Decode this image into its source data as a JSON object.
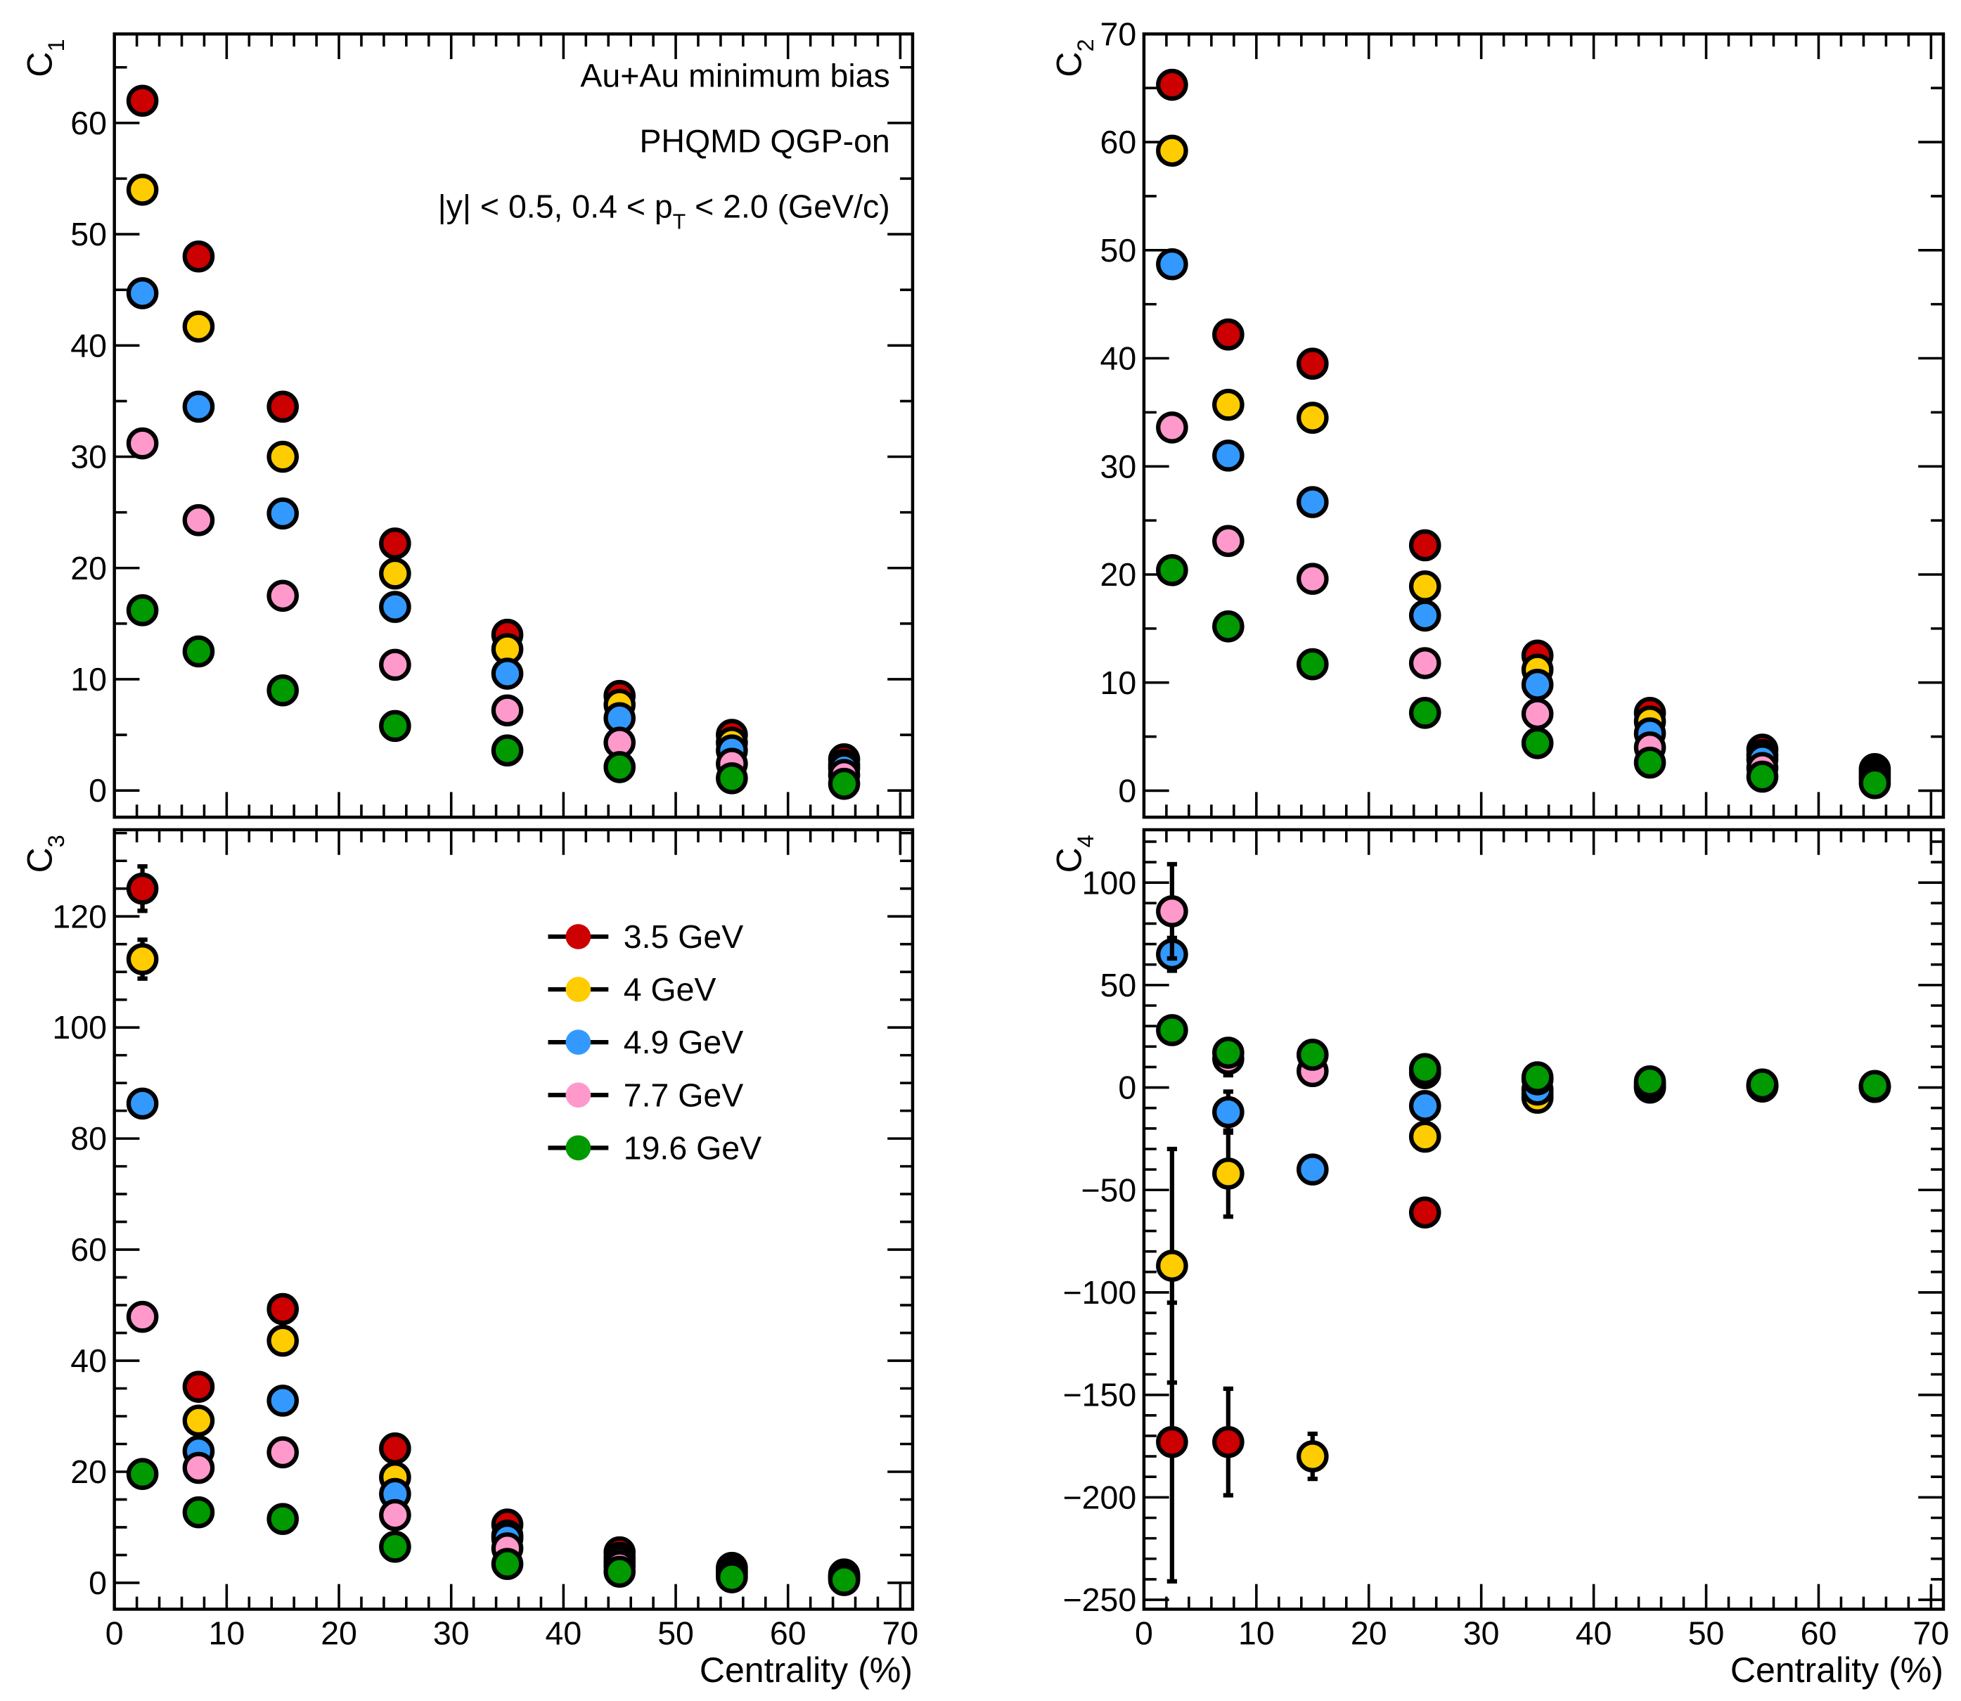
{
  "chart_data": [
    {
      "type": "scatter",
      "id": "c1",
      "ylabel": "C_1",
      "xlabel": "",
      "xlim": [
        0,
        71.1
      ],
      "ylim": [
        -2.4,
        68
      ],
      "yticks": [
        0,
        10,
        20,
        30,
        40,
        50,
        60
      ],
      "yminor": 2,
      "xtick_labels": false,
      "annotations": [
        "Au+Au minimum bias",
        "PHQMD QGP-on",
        "|y| < 0.5, 0.4 < p_T < 2.0 (GeV/c)"
      ],
      "x": [
        2.5,
        7.5,
        15,
        25,
        35,
        45,
        55,
        65
      ],
      "series": [
        {
          "name": "3.5 GeV",
          "values": [
            62,
            48,
            34.5,
            22.2,
            14,
            8.5,
            5,
            2.8
          ]
        },
        {
          "name": "4 GeV",
          "values": [
            54,
            41.7,
            30,
            19.5,
            12.7,
            7.7,
            4.3,
            2.3
          ]
        },
        {
          "name": "4.9 GeV",
          "values": [
            44.7,
            34.5,
            24.9,
            16.5,
            10.5,
            6.5,
            3.6,
            2
          ]
        },
        {
          "name": "7.7 GeV",
          "values": [
            31.2,
            24.3,
            17.5,
            11.3,
            7.2,
            4.3,
            2.4,
            1.4
          ]
        },
        {
          "name": "19.6 GeV",
          "values": [
            16.2,
            12.5,
            9,
            5.8,
            3.6,
            2.1,
            1.1,
            0.6
          ]
        }
      ]
    },
    {
      "type": "scatter",
      "id": "c2",
      "ylabel": "C_2",
      "xlabel": "",
      "xlim": [
        0,
        71.1
      ],
      "ylim": [
        -2.45,
        70
      ],
      "yticks": [
        0,
        10,
        20,
        30,
        40,
        50,
        60,
        70
      ],
      "yminor": 2,
      "xtick_labels": false,
      "x": [
        2.5,
        7.5,
        15,
        25,
        35,
        45,
        55,
        65
      ],
      "series": [
        {
          "name": "3.5 GeV",
          "values": [
            65.3,
            42.2,
            39.5,
            22.7,
            12.5,
            7.2,
            3.8,
            2
          ]
        },
        {
          "name": "4 GeV",
          "values": [
            59.2,
            35.7,
            34.5,
            18.9,
            11.2,
            6.4,
            3.3,
            1.7
          ]
        },
        {
          "name": "4.9 GeV",
          "values": [
            48.7,
            31,
            26.7,
            16.2,
            9.8,
            5.3,
            2.9,
            1.4
          ]
        },
        {
          "name": "7.7 GeV",
          "values": [
            33.6,
            23.1,
            19.6,
            11.8,
            7.1,
            4,
            2.1,
            1.1
          ]
        },
        {
          "name": "19.6 GeV",
          "values": [
            20.4,
            15.2,
            11.7,
            7.2,
            4.4,
            2.6,
            1.3,
            0.7
          ]
        }
      ]
    },
    {
      "type": "scatter",
      "id": "c3",
      "ylabel": "C_3",
      "xlabel": "Centrality (%)",
      "xlim": [
        0,
        71.1
      ],
      "ylim": [
        -4.75,
        135.6
      ],
      "yticks": [
        0,
        20,
        40,
        60,
        80,
        100,
        120
      ],
      "yminor": 4,
      "xtick_labels": true,
      "legend": {
        "position": "top-center",
        "entries": [
          "3.5 GeV",
          "4 GeV",
          "4.9 GeV",
          "7.7 GeV",
          "19.6 GeV"
        ]
      },
      "x": [
        2.5,
        7.5,
        15,
        25,
        35,
        45,
        55,
        65
      ],
      "series": [
        {
          "name": "3.5 GeV",
          "values": [
            125,
            35.3,
            49.3,
            24.2,
            10.5,
            5.5,
            2.7,
            1.5
          ],
          "errors": [
            4,
            1,
            1,
            0.5,
            0,
            0,
            0,
            0
          ]
        },
        {
          "name": "4 GeV",
          "values": [
            112.3,
            29.2,
            43.6,
            19,
            8.5,
            4.5,
            2.2,
            1.2
          ],
          "errors": [
            3.5,
            1,
            1,
            0.5,
            0,
            0,
            0,
            0
          ]
        },
        {
          "name": "4.9 GeV",
          "values": [
            86.3,
            23.7,
            32.8,
            16,
            8,
            3.8,
            1.9,
            1
          ]
        },
        {
          "name": "7.7 GeV",
          "values": [
            47.9,
            20.7,
            23.5,
            12.2,
            6.2,
            3,
            1.5,
            0.8
          ]
        },
        {
          "name": "19.6 GeV",
          "values": [
            19.6,
            12.7,
            11.5,
            6.5,
            3.4,
            2,
            1,
            0.5
          ]
        }
      ]
    },
    {
      "type": "scatter",
      "id": "c4",
      "ylabel": "C_4",
      "xlabel": "Centrality (%)",
      "xlim": [
        0,
        71.1
      ],
      "ylim": [
        -254.6,
        125.8
      ],
      "yticks": [
        -250,
        -200,
        -150,
        -100,
        -50,
        0,
        50,
        100
      ],
      "yminor": 5,
      "xtick_labels": true,
      "x": [
        2.5,
        7.5,
        15,
        25,
        35,
        45,
        55,
        65
      ],
      "series": [
        {
          "name": "3.5 GeV",
          "values": [
            -173,
            -173,
            null,
            -61,
            -3,
            0,
            0.5,
            0.3
          ],
          "errors": [
            68,
            26,
            0,
            3,
            2,
            1,
            0,
            0
          ]
        },
        {
          "name": "4 GeV",
          "values": [
            -87,
            -42,
            -180,
            -24,
            -5,
            0,
            0.5,
            0.3
          ],
          "errors": [
            57,
            21,
            11,
            3,
            2,
            1,
            0,
            0
          ]
        },
        {
          "name": "4.9 GeV",
          "values": [
            65,
            -12,
            -40,
            -9,
            -1,
            1,
            1,
            0.5
          ],
          "errors": [
            8,
            10,
            4,
            2,
            1,
            0,
            0,
            0
          ]
        },
        {
          "name": "7.7 GeV",
          "values": [
            86,
            14,
            8,
            7,
            4,
            2,
            1,
            0.5
          ],
          "errors": [
            23,
            8,
            3,
            1,
            1,
            0,
            0,
            0
          ]
        },
        {
          "name": "19.6 GeV",
          "values": [
            28,
            17,
            16,
            9,
            5,
            3,
            1.5,
            0.8
          ],
          "errors": [
            4,
            3,
            2,
            1,
            1,
            0,
            0,
            0
          ]
        }
      ]
    }
  ],
  "colors": {
    "3.5 GeV": "#cc0000",
    "4 GeV": "#ffcc00",
    "4.9 GeV": "#3399ff",
    "7.7 GeV": "#ff99cc",
    "19.6 GeV": "#009900"
  },
  "xticks": [
    0,
    10,
    20,
    30,
    40,
    50,
    60,
    70
  ]
}
